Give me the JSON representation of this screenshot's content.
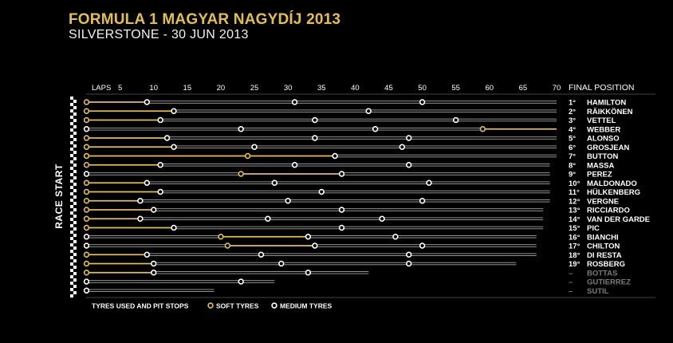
{
  "header": {
    "title": "FORMULA 1 MAGYAR NAGYDÍJ 2013",
    "subtitle": "SILVERSTONE - 30 JUN 2013"
  },
  "colors": {
    "soft": "#e2c04a",
    "medium": "#ffffff",
    "line": "#a8a8a8",
    "text": "#ffffff",
    "dim": "#7a7a7a",
    "background": "#000000"
  },
  "chart_data": {
    "type": "table",
    "laps_label": "LAPS",
    "final_position_label": "FINAL POSITION",
    "side_label": "RACE START",
    "x_ticks": [
      5,
      10,
      15,
      20,
      25,
      30,
      35,
      40,
      45,
      50,
      55,
      60,
      65,
      70
    ],
    "x_range": [
      0,
      70
    ],
    "legend": {
      "title": "TYRES USED AND PIT STOPS",
      "soft": "SOFT TYRES",
      "medium": "MEDIUM TYRES"
    },
    "drivers": [
      {
        "pos": "1°",
        "name": "HAMILTON",
        "finished": true,
        "stints": [
          {
            "tyre": "soft",
            "start": 0,
            "end": 9
          },
          {
            "tyre": "medium",
            "start": 9,
            "end": 31
          },
          {
            "tyre": "medium",
            "start": 31,
            "end": 50
          },
          {
            "tyre": "medium",
            "start": 50,
            "end": 70
          }
        ]
      },
      {
        "pos": "2°",
        "name": "RÄIKKÖNEN",
        "finished": true,
        "stints": [
          {
            "tyre": "soft",
            "start": 0,
            "end": 13
          },
          {
            "tyre": "medium",
            "start": 13,
            "end": 42
          },
          {
            "tyre": "medium",
            "start": 42,
            "end": 70
          }
        ]
      },
      {
        "pos": "3°",
        "name": "VETTEL",
        "finished": true,
        "stints": [
          {
            "tyre": "soft",
            "start": 0,
            "end": 11
          },
          {
            "tyre": "medium",
            "start": 11,
            "end": 34
          },
          {
            "tyre": "medium",
            "start": 34,
            "end": 55
          },
          {
            "tyre": "medium",
            "start": 55,
            "end": 70
          }
        ]
      },
      {
        "pos": "4°",
        "name": "WEBBER",
        "finished": true,
        "stints": [
          {
            "tyre": "medium",
            "start": 0,
            "end": 23
          },
          {
            "tyre": "medium",
            "start": 23,
            "end": 43
          },
          {
            "tyre": "medium",
            "start": 43,
            "end": 59
          },
          {
            "tyre": "soft",
            "start": 59,
            "end": 70
          }
        ]
      },
      {
        "pos": "5°",
        "name": "ALONSO",
        "finished": true,
        "stints": [
          {
            "tyre": "soft",
            "start": 0,
            "end": 12
          },
          {
            "tyre": "medium",
            "start": 12,
            "end": 34
          },
          {
            "tyre": "medium",
            "start": 34,
            "end": 48
          },
          {
            "tyre": "medium",
            "start": 48,
            "end": 70
          }
        ]
      },
      {
        "pos": "6°",
        "name": "GROSJEAN",
        "finished": true,
        "stints": [
          {
            "tyre": "soft",
            "start": 0,
            "end": 13
          },
          {
            "tyre": "medium",
            "start": 13,
            "end": 25
          },
          {
            "tyre": "medium",
            "start": 25,
            "end": 47
          },
          {
            "tyre": "medium",
            "start": 47,
            "end": 70
          }
        ]
      },
      {
        "pos": "7°",
        "name": "BUTTON",
        "finished": true,
        "stints": [
          {
            "tyre": "soft",
            "start": 0,
            "end": 24
          },
          {
            "tyre": "soft",
            "start": 24,
            "end": 37
          },
          {
            "tyre": "medium",
            "start": 37,
            "end": 70
          }
        ]
      },
      {
        "pos": "8°",
        "name": "MASSA",
        "finished": true,
        "stints": [
          {
            "tyre": "soft",
            "start": 0,
            "end": 11
          },
          {
            "tyre": "medium",
            "start": 11,
            "end": 31
          },
          {
            "tyre": "medium",
            "start": 31,
            "end": 48
          },
          {
            "tyre": "medium",
            "start": 48,
            "end": 69
          }
        ]
      },
      {
        "pos": "9°",
        "name": "PEREZ",
        "finished": true,
        "stints": [
          {
            "tyre": "medium",
            "start": 0,
            "end": 23
          },
          {
            "tyre": "soft",
            "start": 23,
            "end": 38
          },
          {
            "tyre": "medium",
            "start": 38,
            "end": 69
          }
        ]
      },
      {
        "pos": "10°",
        "name": "MALDONADO",
        "finished": true,
        "stints": [
          {
            "tyre": "soft",
            "start": 0,
            "end": 9
          },
          {
            "tyre": "medium",
            "start": 9,
            "end": 28
          },
          {
            "tyre": "medium",
            "start": 28,
            "end": 51
          },
          {
            "tyre": "medium",
            "start": 51,
            "end": 69
          }
        ]
      },
      {
        "pos": "11°",
        "name": "HÜLKENBERG",
        "finished": true,
        "stints": [
          {
            "tyre": "soft",
            "start": 0,
            "end": 11
          },
          {
            "tyre": "medium",
            "start": 11,
            "end": 35
          },
          {
            "tyre": "medium",
            "start": 35,
            "end": 69
          }
        ]
      },
      {
        "pos": "12°",
        "name": "VERGNE",
        "finished": true,
        "stints": [
          {
            "tyre": "soft",
            "start": 0,
            "end": 8
          },
          {
            "tyre": "medium",
            "start": 8,
            "end": 30
          },
          {
            "tyre": "medium",
            "start": 30,
            "end": 50
          },
          {
            "tyre": "medium",
            "start": 50,
            "end": 69
          }
        ]
      },
      {
        "pos": "13°",
        "name": "RICCIARDO",
        "finished": true,
        "stints": [
          {
            "tyre": "soft",
            "start": 0,
            "end": 10
          },
          {
            "tyre": "medium",
            "start": 10,
            "end": 38
          },
          {
            "tyre": "medium",
            "start": 38,
            "end": 68
          }
        ]
      },
      {
        "pos": "14°",
        "name": "VAN DER GARDE",
        "finished": true,
        "stints": [
          {
            "tyre": "soft",
            "start": 0,
            "end": 8
          },
          {
            "tyre": "medium",
            "start": 8,
            "end": 27
          },
          {
            "tyre": "medium",
            "start": 27,
            "end": 44
          },
          {
            "tyre": "medium",
            "start": 44,
            "end": 68
          }
        ]
      },
      {
        "pos": "15°",
        "name": "PIC",
        "finished": true,
        "stints": [
          {
            "tyre": "soft",
            "start": 0,
            "end": 13
          },
          {
            "tyre": "medium",
            "start": 13,
            "end": 38
          },
          {
            "tyre": "medium",
            "start": 38,
            "end": 68
          }
        ]
      },
      {
        "pos": "16°",
        "name": "BIANCHI",
        "finished": true,
        "stints": [
          {
            "tyre": "medium",
            "start": 0,
            "end": 20
          },
          {
            "tyre": "soft",
            "start": 20,
            "end": 33
          },
          {
            "tyre": "medium",
            "start": 33,
            "end": 46
          },
          {
            "tyre": "medium",
            "start": 46,
            "end": 67
          }
        ]
      },
      {
        "pos": "17°",
        "name": "CHILTON",
        "finished": true,
        "stints": [
          {
            "tyre": "medium",
            "start": 0,
            "end": 21
          },
          {
            "tyre": "soft",
            "start": 21,
            "end": 34
          },
          {
            "tyre": "medium",
            "start": 34,
            "end": 50
          },
          {
            "tyre": "medium",
            "start": 50,
            "end": 67
          }
        ]
      },
      {
        "pos": "18°",
        "name": "DI RESTA",
        "finished": true,
        "stints": [
          {
            "tyre": "soft",
            "start": 0,
            "end": 9
          },
          {
            "tyre": "medium",
            "start": 9,
            "end": 26
          },
          {
            "tyre": "medium",
            "start": 26,
            "end": 48
          },
          {
            "tyre": "medium",
            "start": 48,
            "end": 67
          }
        ]
      },
      {
        "pos": "19°",
        "name": "ROSBERG",
        "finished": true,
        "stints": [
          {
            "tyre": "soft",
            "start": 0,
            "end": 10
          },
          {
            "tyre": "medium",
            "start": 10,
            "end": 29
          },
          {
            "tyre": "medium",
            "start": 29,
            "end": 48
          },
          {
            "tyre": "medium",
            "start": 48,
            "end": 64
          }
        ]
      },
      {
        "pos": "–",
        "name": "BOTTAS",
        "finished": false,
        "stints": [
          {
            "tyre": "soft",
            "start": 0,
            "end": 10
          },
          {
            "tyre": "medium",
            "start": 10,
            "end": 33
          },
          {
            "tyre": "medium",
            "start": 33,
            "end": 42
          }
        ]
      },
      {
        "pos": "–",
        "name": "GUTIERREZ",
        "finished": false,
        "stints": [
          {
            "tyre": "medium",
            "start": 0,
            "end": 23
          },
          {
            "tyre": "medium",
            "start": 23,
            "end": 28
          }
        ]
      },
      {
        "pos": "–",
        "name": "SUTIL",
        "finished": false,
        "stints": [
          {
            "tyre": "medium",
            "start": 0,
            "end": 19
          }
        ]
      }
    ]
  }
}
